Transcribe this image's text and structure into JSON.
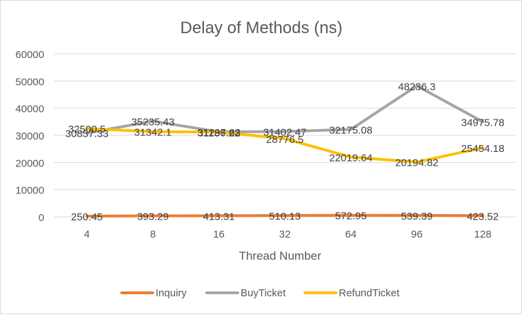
{
  "chart_data": {
    "type": "line",
    "title": "Delay of Methods (ns)",
    "xlabel": "Thread Number",
    "ylabel": "",
    "categories": [
      "4",
      "8",
      "16",
      "32",
      "64",
      "96",
      "128"
    ],
    "ylim": [
      0,
      60000
    ],
    "yticks": [
      0,
      10000,
      20000,
      30000,
      40000,
      50000,
      60000
    ],
    "grid": true,
    "legend_position": "bottom",
    "series": [
      {
        "name": "Inquiry",
        "color": "#ED7D31",
        "values": [
          250.45,
          393.29,
          413.31,
          510.13,
          572.95,
          539.39,
          423.52
        ],
        "labels": [
          "250.45",
          "393.29",
          "413.31",
          "510.13",
          "572.95",
          "539.39",
          "423.52"
        ]
      },
      {
        "name": "BuyTicket",
        "color": "#A5A5A5",
        "values": [
          30857.33,
          35235.43,
          31297.63,
          31402.47,
          32175.08,
          48236.3,
          34975.78
        ],
        "labels": [
          "30857.33",
          "35235.43",
          "31297.63",
          "31402.47",
          "32175.08",
          "48236.3",
          "34975.78"
        ]
      },
      {
        "name": "RefundTicket",
        "color": "#FFC000",
        "values": [
          32500.5,
          31342.1,
          31186.22,
          28776.5,
          22019.64,
          20194.82,
          25454.18
        ],
        "labels": [
          "32500.5",
          "31342.1",
          "31186.22",
          "28776.5",
          "22019.64",
          "20194.82",
          "25454.18"
        ]
      }
    ]
  }
}
